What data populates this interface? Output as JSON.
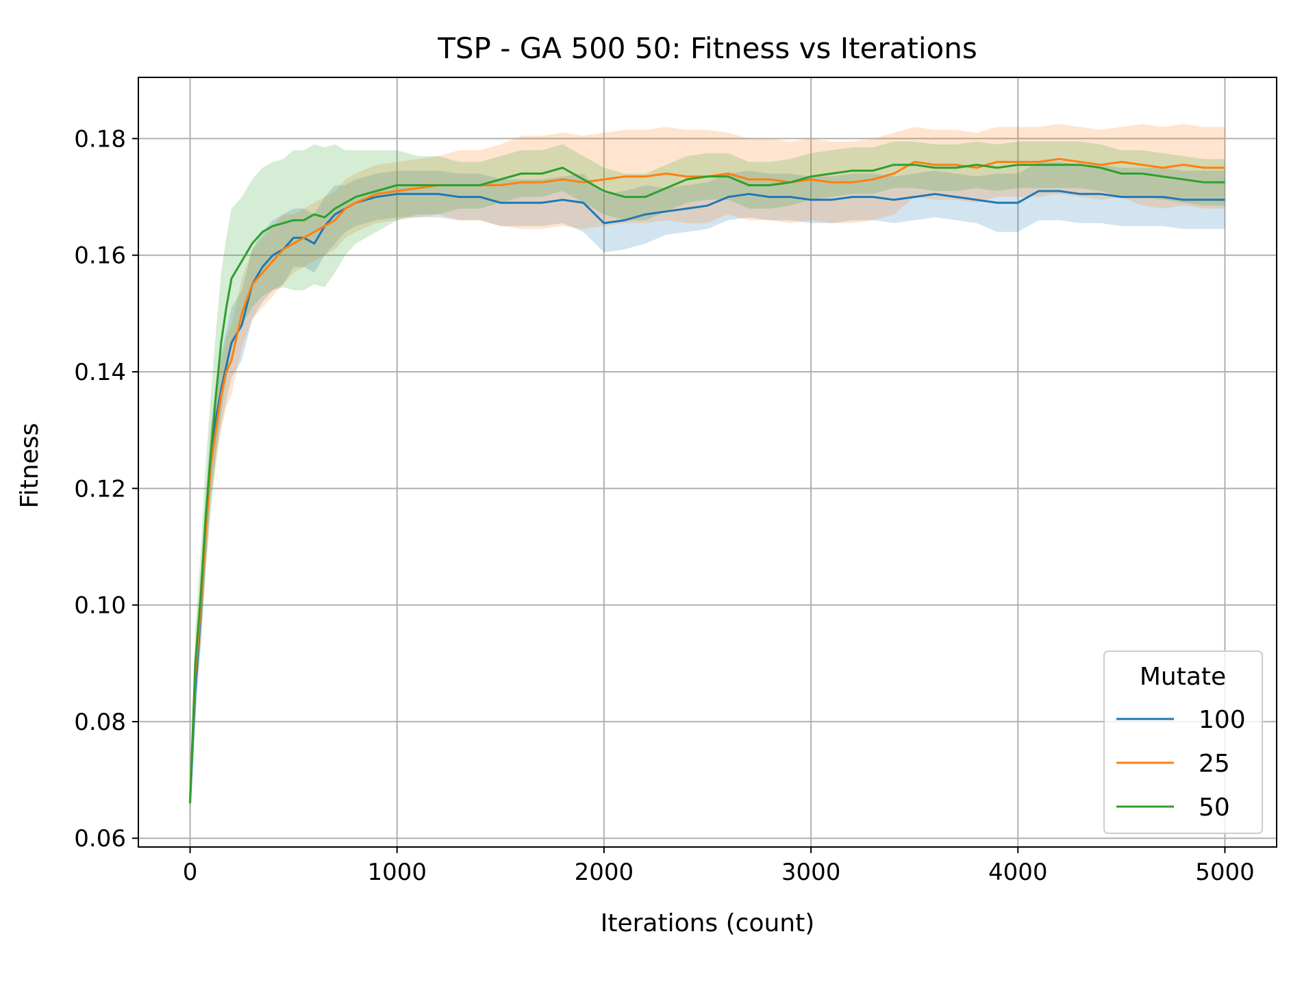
{
  "chart_data": {
    "type": "line",
    "title": "TSP - GA 500 50: Fitness vs Iterations",
    "xlabel": "Iterations (count)",
    "ylabel": "Fitness",
    "xlim": [
      -250,
      5250
    ],
    "ylim": [
      0.0585,
      0.1905
    ],
    "xticks": [
      0,
      1000,
      2000,
      3000,
      4000,
      5000
    ],
    "xtick_labels": [
      "0",
      "1000",
      "2000",
      "3000",
      "4000",
      "5000"
    ],
    "yticks": [
      0.06,
      0.08,
      0.1,
      0.12,
      0.14,
      0.16,
      0.18
    ],
    "ytick_labels": [
      "0.06",
      "0.08",
      "0.10",
      "0.12",
      "0.14",
      "0.16",
      "0.18"
    ],
    "grid": true,
    "legend": {
      "title": "Mutate",
      "position": "bottom-right"
    },
    "series": [
      {
        "name": "100",
        "color": "#1f77b4",
        "x": [
          0,
          25,
          50,
          75,
          100,
          125,
          150,
          175,
          200,
          250,
          300,
          350,
          400,
          450,
          500,
          550,
          600,
          650,
          700,
          750,
          800,
          900,
          1000,
          1100,
          1200,
          1300,
          1400,
          1500,
          1600,
          1700,
          1800,
          1900,
          2000,
          2100,
          2200,
          2300,
          2400,
          2500,
          2600,
          2700,
          2800,
          2900,
          3000,
          3100,
          3200,
          3300,
          3400,
          3500,
          3600,
          3700,
          3800,
          3900,
          4000,
          4100,
          4200,
          4300,
          4400,
          4500,
          4600,
          4700,
          4800,
          4900,
          5000
        ],
        "y": [
          0.066,
          0.085,
          0.098,
          0.112,
          0.125,
          0.132,
          0.137,
          0.141,
          0.145,
          0.148,
          0.155,
          0.158,
          0.16,
          0.161,
          0.163,
          0.163,
          0.162,
          0.165,
          0.167,
          0.168,
          0.169,
          0.17,
          0.1705,
          0.1705,
          0.1705,
          0.17,
          0.17,
          0.169,
          0.169,
          0.169,
          0.1695,
          0.169,
          0.1655,
          0.166,
          0.167,
          0.1675,
          0.168,
          0.1685,
          0.17,
          0.1705,
          0.17,
          0.17,
          0.1695,
          0.1695,
          0.17,
          0.17,
          0.1695,
          0.17,
          0.1705,
          0.17,
          0.1695,
          0.169,
          0.169,
          0.171,
          0.171,
          0.1705,
          0.1705,
          0.17,
          0.17,
          0.17,
          0.1695,
          0.1695,
          0.1695
        ],
        "band": [
          0.002,
          0.005,
          0.006,
          0.006,
          0.006,
          0.006,
          0.006,
          0.006,
          0.006,
          0.006,
          0.006,
          0.006,
          0.006,
          0.006,
          0.005,
          0.005,
          0.005,
          0.005,
          0.005,
          0.004,
          0.004,
          0.004,
          0.004,
          0.004,
          0.004,
          0.004,
          0.004,
          0.004,
          0.004,
          0.004,
          0.004,
          0.005,
          0.005,
          0.005,
          0.005,
          0.004,
          0.004,
          0.004,
          0.004,
          0.004,
          0.004,
          0.004,
          0.004,
          0.004,
          0.004,
          0.004,
          0.004,
          0.004,
          0.004,
          0.004,
          0.004,
          0.005,
          0.005,
          0.005,
          0.005,
          0.005,
          0.005,
          0.005,
          0.005,
          0.005,
          0.005,
          0.005,
          0.005
        ]
      },
      {
        "name": "25",
        "color": "#ff7f0e",
        "x": [
          0,
          25,
          50,
          75,
          100,
          125,
          150,
          175,
          200,
          250,
          300,
          350,
          400,
          450,
          500,
          550,
          600,
          650,
          700,
          750,
          800,
          900,
          1000,
          1100,
          1200,
          1300,
          1400,
          1500,
          1600,
          1700,
          1800,
          1900,
          2000,
          2100,
          2200,
          2300,
          2400,
          2500,
          2600,
          2700,
          2800,
          2900,
          3000,
          3100,
          3200,
          3300,
          3400,
          3500,
          3600,
          3700,
          3800,
          3900,
          4000,
          4100,
          4200,
          4300,
          4400,
          4500,
          4600,
          4700,
          4800,
          4900,
          5000
        ],
        "y": [
          0.067,
          0.088,
          0.099,
          0.112,
          0.124,
          0.13,
          0.136,
          0.14,
          0.142,
          0.15,
          0.155,
          0.157,
          0.159,
          0.161,
          0.162,
          0.163,
          0.164,
          0.165,
          0.166,
          0.168,
          0.169,
          0.1705,
          0.171,
          0.1715,
          0.172,
          0.172,
          0.172,
          0.172,
          0.1725,
          0.1725,
          0.173,
          0.1725,
          0.173,
          0.1735,
          0.1735,
          0.174,
          0.1735,
          0.1735,
          0.174,
          0.173,
          0.173,
          0.1725,
          0.173,
          0.1725,
          0.1725,
          0.173,
          0.174,
          0.176,
          0.1755,
          0.1755,
          0.175,
          0.176,
          0.176,
          0.176,
          0.1765,
          0.176,
          0.1755,
          0.176,
          0.1755,
          0.175,
          0.1755,
          0.175,
          0.175
        ],
        "band": [
          0.002,
          0.005,
          0.006,
          0.006,
          0.006,
          0.006,
          0.006,
          0.006,
          0.006,
          0.006,
          0.006,
          0.006,
          0.006,
          0.006,
          0.005,
          0.005,
          0.005,
          0.005,
          0.005,
          0.005,
          0.005,
          0.005,
          0.005,
          0.005,
          0.005,
          0.006,
          0.006,
          0.007,
          0.008,
          0.008,
          0.008,
          0.008,
          0.008,
          0.008,
          0.008,
          0.008,
          0.008,
          0.008,
          0.007,
          0.007,
          0.007,
          0.007,
          0.007,
          0.007,
          0.007,
          0.007,
          0.007,
          0.006,
          0.006,
          0.006,
          0.006,
          0.006,
          0.006,
          0.006,
          0.006,
          0.006,
          0.006,
          0.006,
          0.007,
          0.007,
          0.007,
          0.007,
          0.007
        ]
      },
      {
        "name": "50",
        "color": "#2ca02c",
        "x": [
          0,
          25,
          50,
          75,
          100,
          125,
          150,
          175,
          200,
          250,
          300,
          350,
          400,
          450,
          500,
          550,
          600,
          650,
          700,
          750,
          800,
          900,
          1000,
          1100,
          1200,
          1300,
          1400,
          1500,
          1600,
          1700,
          1800,
          1900,
          2000,
          2100,
          2200,
          2300,
          2400,
          2500,
          2600,
          2700,
          2800,
          2900,
          3000,
          3100,
          3200,
          3300,
          3400,
          3500,
          3600,
          3700,
          3800,
          3900,
          4000,
          4100,
          4200,
          4300,
          4400,
          4500,
          4600,
          4700,
          4800,
          4900,
          5000
        ],
        "y": [
          0.066,
          0.09,
          0.101,
          0.115,
          0.126,
          0.136,
          0.145,
          0.151,
          0.156,
          0.159,
          0.162,
          0.164,
          0.165,
          0.1655,
          0.166,
          0.166,
          0.167,
          0.1665,
          0.168,
          0.169,
          0.17,
          0.171,
          0.172,
          0.172,
          0.172,
          0.172,
          0.172,
          0.173,
          0.174,
          0.174,
          0.175,
          0.173,
          0.171,
          0.17,
          0.17,
          0.1715,
          0.173,
          0.1735,
          0.1735,
          0.172,
          0.172,
          0.1725,
          0.1735,
          0.174,
          0.1745,
          0.1745,
          0.1755,
          0.1755,
          0.175,
          0.175,
          0.1755,
          0.175,
          0.1755,
          0.1755,
          0.1755,
          0.1755,
          0.175,
          0.174,
          0.174,
          0.1735,
          0.173,
          0.1725,
          0.1725
        ],
        "band": [
          0.002,
          0.006,
          0.008,
          0.009,
          0.01,
          0.011,
          0.012,
          0.012,
          0.012,
          0.011,
          0.011,
          0.011,
          0.011,
          0.011,
          0.012,
          0.012,
          0.012,
          0.012,
          0.011,
          0.009,
          0.008,
          0.007,
          0.006,
          0.005,
          0.005,
          0.004,
          0.004,
          0.004,
          0.004,
          0.004,
          0.004,
          0.004,
          0.004,
          0.004,
          0.004,
          0.004,
          0.004,
          0.004,
          0.004,
          0.004,
          0.004,
          0.004,
          0.004,
          0.004,
          0.004,
          0.004,
          0.004,
          0.004,
          0.004,
          0.004,
          0.004,
          0.004,
          0.004,
          0.004,
          0.004,
          0.004,
          0.004,
          0.004,
          0.004,
          0.004,
          0.004,
          0.004,
          0.004
        ]
      }
    ]
  }
}
